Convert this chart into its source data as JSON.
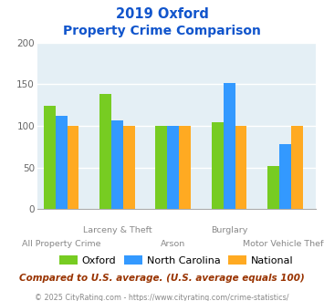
{
  "title_line1": "2019 Oxford",
  "title_line2": "Property Crime Comparison",
  "categories": [
    "All Property Crime",
    "Larceny & Theft",
    "Arson",
    "Burglary",
    "Motor Vehicle Theft"
  ],
  "series": {
    "Oxford": [
      124,
      138,
      100,
      105,
      52
    ],
    "North Carolina": [
      112,
      107,
      100,
      152,
      78
    ],
    "National": [
      100,
      100,
      100,
      100,
      100
    ]
  },
  "colors": {
    "Oxford": "#77cc22",
    "North Carolina": "#3399ff",
    "National": "#ffaa22"
  },
  "ylim": [
    0,
    200
  ],
  "yticks": [
    0,
    50,
    100,
    150,
    200
  ],
  "plot_bg": "#e4eff5",
  "title_color": "#1155cc",
  "note": "Compared to U.S. average. (U.S. average equals 100)",
  "footer": "© 2025 CityRating.com - https://www.cityrating.com/crime-statistics/",
  "note_color": "#993300",
  "footer_color": "#888888"
}
